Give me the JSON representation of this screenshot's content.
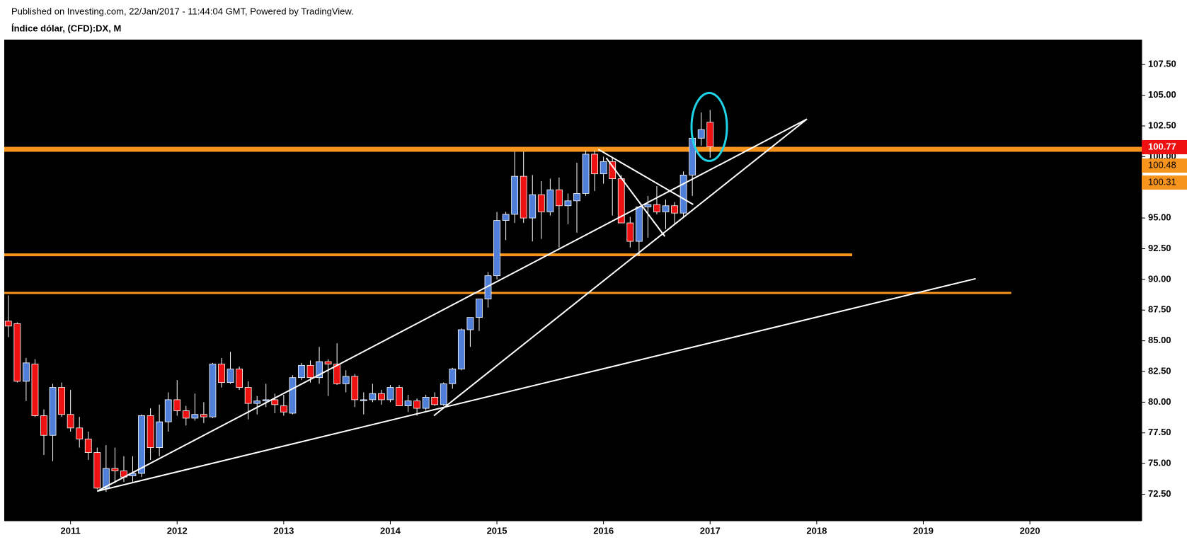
{
  "chart_data": {
    "type": "candlestick",
    "title": "Published on Investing.com, 22/Jan/2017 - 11:44:04 GMT, Powered by TradingView.",
    "subtitle": "Índice dólar, (CFD):DX, M",
    "up_color": "#4f7fd9",
    "down_color": "#ee1111",
    "open": [
      86.6,
      86.4,
      81.7,
      83.1,
      78.9,
      77.3,
      81.2,
      79.0,
      77.9,
      77.0,
      75.9,
      73.0,
      74.6,
      74.4,
      74.0,
      74.2,
      78.9,
      76.3,
      78.4,
      80.2,
      79.3,
      78.7,
      79.0,
      78.8,
      83.1,
      81.6,
      82.7,
      81.2,
      79.9,
      80.1,
      80.2,
      79.7,
      79.1,
      82.0,
      83.0,
      82.0,
      83.3,
      83.1,
      81.5,
      82.1,
      80.2,
      80.2,
      80.7,
      80.2,
      81.2,
      79.7,
      80.1,
      79.5,
      80.4,
      79.8,
      81.5,
      82.7,
      85.9,
      86.9,
      88.4,
      90.3,
      94.8,
      95.3,
      98.4,
      95.0,
      96.9,
      95.5,
      97.3,
      96.0,
      96.4,
      97.0,
      100.2,
      98.6,
      99.6,
      98.2,
      94.6,
      93.1,
      95.9,
      96.1,
      95.5,
      96.0,
      95.4,
      98.5,
      101.5,
      102.8
    ],
    "high": [
      88.7,
      86.5,
      83.6,
      83.5,
      79.4,
      81.5,
      81.6,
      81.0,
      78.8,
      77.6,
      76.3,
      76.5,
      76.3,
      75.6,
      75.6,
      79.0,
      79.5,
      79.8,
      80.8,
      81.8,
      79.7,
      80.7,
      80.0,
      83.2,
      83.6,
      84.1,
      82.9,
      81.7,
      80.5,
      81.5,
      80.7,
      80.6,
      82.2,
      83.2,
      83.4,
      84.5,
      83.5,
      84.8,
      82.6,
      82.3,
      80.8,
      81.5,
      81.0,
      81.4,
      81.4,
      80.6,
      80.3,
      80.6,
      80.8,
      81.6,
      82.8,
      86.0,
      86.9,
      88.4,
      90.6,
      95.5,
      95.5,
      100.4,
      100.4,
      98.5,
      98.0,
      98.2,
      98.3,
      97.0,
      99.5,
      100.5,
      100.5,
      100.0,
      99.9,
      98.5,
      95.1,
      95.9,
      96.8,
      97.6,
      96.5,
      96.3,
      98.8,
      101.9,
      103.6,
      103.8
    ],
    "low": [
      85.3,
      81.6,
      80.1,
      78.8,
      75.7,
      75.2,
      78.8,
      77.6,
      76.3,
      75.3,
      72.9,
      72.7,
      73.4,
      73.5,
      73.4,
      73.9,
      75.3,
      75.6,
      77.6,
      78.9,
      78.1,
      78.5,
      78.3,
      78.7,
      81.2,
      81.5,
      81.0,
      78.6,
      79.0,
      79.6,
      79.1,
      78.9,
      79.0,
      81.8,
      81.6,
      81.5,
      80.5,
      81.4,
      80.8,
      79.6,
      79.0,
      80.0,
      79.8,
      80.0,
      79.7,
      79.2,
      78.9,
      79.3,
      79.7,
      79.7,
      81.1,
      82.6,
      84.5,
      85.8,
      87.7,
      90.0,
      93.2,
      94.6,
      94.6,
      93.1,
      93.3,
      95.2,
      92.6,
      94.5,
      93.8,
      96.8,
      97.2,
      97.8,
      95.2,
      94.6,
      92.6,
      91.9,
      93.4,
      95.3,
      94.1,
      94.5,
      95.1,
      96.8,
      100.9,
      99.9
    ],
    "close": [
      86.2,
      81.7,
      83.2,
      78.9,
      77.3,
      81.2,
      79.0,
      77.9,
      77.0,
      75.9,
      73.0,
      74.6,
      74.4,
      73.9,
      74.2,
      78.9,
      76.3,
      78.4,
      80.2,
      79.3,
      78.7,
      79.0,
      78.8,
      83.1,
      81.6,
      82.7,
      81.2,
      79.9,
      80.1,
      80.2,
      79.8,
      79.2,
      82.0,
      83.0,
      82.0,
      83.3,
      83.1,
      81.5,
      82.1,
      80.2,
      80.2,
      80.7,
      80.2,
      81.2,
      79.7,
      80.1,
      79.5,
      80.4,
      79.8,
      81.5,
      82.7,
      85.9,
      86.9,
      88.4,
      90.3,
      94.8,
      95.3,
      98.4,
      95.0,
      96.9,
      95.5,
      97.3,
      96.0,
      96.4,
      97.0,
      100.2,
      98.6,
      99.6,
      98.2,
      94.6,
      93.1,
      95.9,
      96.1,
      95.5,
      96.0,
      95.4,
      98.5,
      101.5,
      102.2,
      100.8
    ],
    "ylim": [
      70.34,
      109.53
    ],
    "yticks": [
      {
        "value": 72.5,
        "label": "72.50"
      },
      {
        "value": 75,
        "label": "75.00"
      },
      {
        "value": 77.5,
        "label": "77.50"
      },
      {
        "value": 80,
        "label": "80.00"
      },
      {
        "value": 82.5,
        "label": "82.50"
      },
      {
        "value": 85,
        "label": "85.00"
      },
      {
        "value": 87.5,
        "label": "87.50"
      },
      {
        "value": 90,
        "label": "90.00"
      },
      {
        "value": 92.5,
        "label": "92.50"
      },
      {
        "value": 95,
        "label": "95.00"
      },
      {
        "value": 97.5,
        "label": "97.50"
      },
      {
        "value": 100,
        "label": "100.00"
      },
      {
        "value": 102.5,
        "label": "102.50"
      },
      {
        "value": 105,
        "label": "105.00"
      },
      {
        "value": 107.5,
        "label": "107.50"
      }
    ],
    "xticks": [
      "2011",
      "2012",
      "2013",
      "2014",
      "2015",
      "2016",
      "2017",
      "2018",
      "2019",
      "2020"
    ],
    "horizontal_lines": [
      {
        "value": 100.6
      },
      {
        "value": 92.0,
        "end": 95.0
      },
      {
        "value": 88.9,
        "end": 112.9
      }
    ],
    "line_color": "#f7941d",
    "trend_lines": [
      [
        [
          10.0,
          72.75
        ],
        [
          89.9,
          103.06
        ]
      ],
      [
        [
          47.9,
          78.9
        ],
        [
          89.9,
          103.06
        ]
      ],
      [
        [
          10.0,
          72.75
        ],
        [
          108.9,
          90.06
        ]
      ],
      [
        [
          66.4,
          100.6
        ],
        [
          77.1,
          96.1
        ]
      ],
      [
        [
          67.3,
          99.9
        ],
        [
          73.9,
          93.5
        ]
      ]
    ],
    "price_labels": [
      {
        "value": 100.77,
        "color": "#ee1111"
      },
      {
        "value": 100.48,
        "color": "#f7941d"
      },
      {
        "value": 100.31,
        "color": "#f7941d"
      }
    ]
  }
}
